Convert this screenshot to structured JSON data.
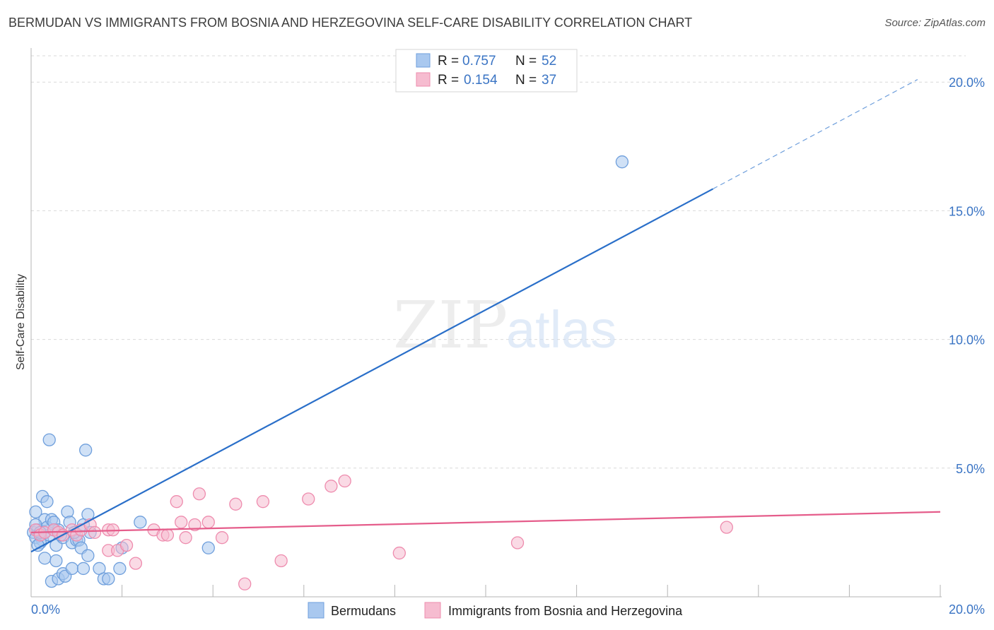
{
  "title": "BERMUDAN VS IMMIGRANTS FROM BOSNIA AND HERZEGOVINA SELF-CARE DISABILITY CORRELATION CHART",
  "source": "Source: ZipAtlas.com",
  "watermark": {
    "zip": "ZIP",
    "atlas": "atlas"
  },
  "colors": {
    "blue_fill": "#a9c8ef",
    "blue_stroke": "#6f9fdc",
    "blue_line": "#2a6fc9",
    "pink_fill": "#f6bcd0",
    "pink_stroke": "#ee8cae",
    "pink_line": "#e55d8b",
    "tick_label": "#3a74c4",
    "grid": "#d9d9d9"
  },
  "legend_box": [
    {
      "r_label": "R = ",
      "r_value": "0.757",
      "n_label": "N = ",
      "n_value": "52"
    },
    {
      "r_label": "R = ",
      "r_value": "0.154",
      "n_label": "N = ",
      "n_value": "37"
    }
  ],
  "chart_data": {
    "type": "scatter",
    "title": "BERMUDAN VS IMMIGRANTS FROM BOSNIA AND HERZEGOVINA SELF-CARE DISABILITY CORRELATION CHART",
    "xlabel": "",
    "ylabel": "Self-Care Disability",
    "xlim": [
      0,
      20
    ],
    "ylim": [
      0,
      20.5
    ],
    "x_tick_labels": [
      "0.0%",
      "20.0%"
    ],
    "y_ticks": [
      5,
      10,
      15,
      20
    ],
    "y_tick_labels": [
      "5.0%",
      "10.0%",
      "15.0%",
      "20.0%"
    ],
    "legend_position": "bottom",
    "series": [
      {
        "name": "Bermudans",
        "R": 0.757,
        "N": 52,
        "trend": {
          "x0": 0,
          "y0": 1.75,
          "x1": 15,
          "y1": 15.85,
          "dash_x1": 19.5,
          "dash_y1": 20.1
        },
        "points": [
          [
            0.05,
            2.5
          ],
          [
            0.1,
            2.3
          ],
          [
            0.15,
            2.6
          ],
          [
            0.2,
            2.4
          ],
          [
            0.25,
            2.2
          ],
          [
            0.3,
            3.0
          ],
          [
            0.35,
            2.7
          ],
          [
            0.4,
            2.4
          ],
          [
            0.1,
            3.3
          ],
          [
            0.2,
            2.1
          ],
          [
            0.3,
            2.5
          ],
          [
            0.45,
            3.0
          ],
          [
            0.5,
            2.9
          ],
          [
            0.55,
            2.0
          ],
          [
            0.6,
            2.6
          ],
          [
            0.7,
            2.3
          ],
          [
            0.8,
            3.3
          ],
          [
            0.85,
            2.9
          ],
          [
            0.9,
            2.1
          ],
          [
            1.0,
            2.2
          ],
          [
            1.05,
            2.2
          ],
          [
            1.1,
            1.9
          ],
          [
            1.15,
            2.8
          ],
          [
            1.25,
            3.2
          ],
          [
            0.25,
            3.9
          ],
          [
            0.35,
            3.7
          ],
          [
            0.4,
            6.1
          ],
          [
            1.2,
            5.7
          ],
          [
            0.3,
            1.5
          ],
          [
            0.45,
            0.6
          ],
          [
            0.55,
            1.4
          ],
          [
            0.6,
            0.7
          ],
          [
            0.7,
            0.9
          ],
          [
            0.75,
            0.8
          ],
          [
            0.9,
            1.1
          ],
          [
            1.15,
            1.1
          ],
          [
            1.25,
            1.6
          ],
          [
            1.5,
            1.1
          ],
          [
            1.6,
            0.7
          ],
          [
            1.7,
            0.7
          ],
          [
            1.95,
            1.1
          ],
          [
            2.0,
            1.9
          ],
          [
            2.4,
            2.9
          ],
          [
            3.9,
            1.9
          ],
          [
            0.1,
            2.8
          ],
          [
            0.2,
            2.5
          ],
          [
            0.65,
            2.4
          ],
          [
            0.95,
            2.5
          ],
          [
            0.15,
            2.0
          ],
          [
            0.5,
            2.6
          ],
          [
            1.3,
            2.5
          ],
          [
            13.0,
            16.9
          ]
        ]
      },
      {
        "name": "Immigrants from Bosnia and Herzegovina",
        "R": 0.154,
        "N": 37,
        "trend": {
          "x0": 0,
          "y0": 2.5,
          "x1": 20,
          "y1": 3.3
        },
        "points": [
          [
            0.1,
            2.6
          ],
          [
            0.2,
            2.4
          ],
          [
            0.3,
            2.5
          ],
          [
            0.5,
            2.6
          ],
          [
            0.6,
            2.5
          ],
          [
            0.7,
            2.4
          ],
          [
            0.9,
            2.6
          ],
          [
            1.0,
            2.4
          ],
          [
            1.1,
            2.6
          ],
          [
            1.3,
            2.8
          ],
          [
            1.4,
            2.5
          ],
          [
            1.7,
            2.6
          ],
          [
            1.8,
            2.6
          ],
          [
            1.7,
            1.8
          ],
          [
            1.9,
            1.8
          ],
          [
            2.1,
            2.0
          ],
          [
            2.3,
            1.3
          ],
          [
            2.7,
            2.6
          ],
          [
            2.9,
            2.4
          ],
          [
            3.0,
            2.4
          ],
          [
            3.2,
            3.7
          ],
          [
            3.3,
            2.9
          ],
          [
            3.4,
            2.3
          ],
          [
            3.6,
            2.8
          ],
          [
            3.7,
            4.0
          ],
          [
            3.9,
            2.9
          ],
          [
            4.2,
            2.3
          ],
          [
            4.5,
            3.6
          ],
          [
            4.7,
            0.5
          ],
          [
            5.1,
            3.7
          ],
          [
            5.5,
            1.4
          ],
          [
            6.1,
            3.8
          ],
          [
            6.6,
            4.3
          ],
          [
            6.9,
            4.5
          ],
          [
            8.1,
            1.7
          ],
          [
            10.7,
            2.1
          ],
          [
            15.3,
            2.7
          ]
        ]
      }
    ]
  }
}
